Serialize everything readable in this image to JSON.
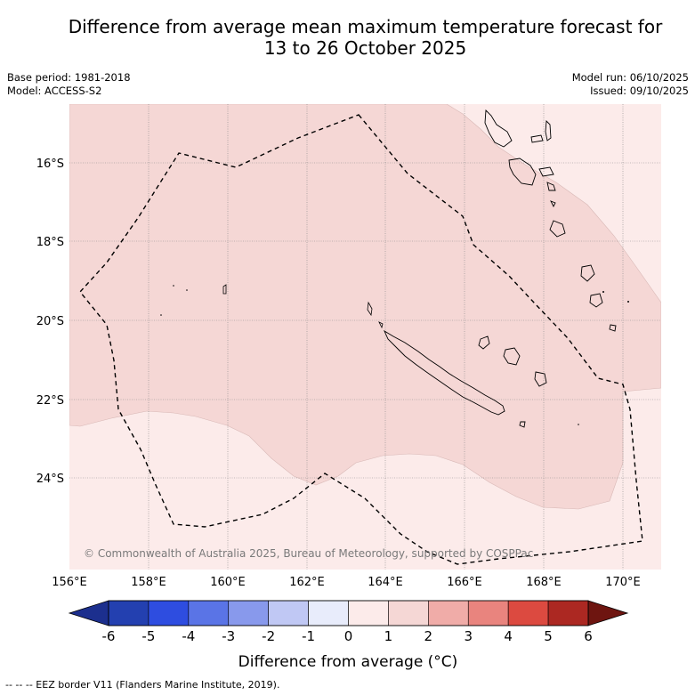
{
  "title": {
    "line1": "Difference from average mean maximum temperature forecast for",
    "line2": "13 to 26 October 2025"
  },
  "meta": {
    "base_period": "Base period: 1981-2018",
    "model": "Model: ACCESS-S2",
    "model_run": "Model run: 06/10/2025",
    "issued": "Issued: 09/10/2025"
  },
  "map": {
    "lat_labels": [
      "16°S",
      "18°S",
      "20°S",
      "22°S",
      "24°S"
    ],
    "lon_labels": [
      "156°E",
      "158°E",
      "160°E",
      "162°E",
      "164°E",
      "166°E",
      "168°E",
      "170°E"
    ],
    "copyright": "© Commonwealth of Australia 2025, Bureau of Meteorology, supported by COSPPac",
    "region_colors": {
      "range_0_1": "#fcebea",
      "range_1_2": "#f5d7d5",
      "background": "#ffffff"
    }
  },
  "colorbar": {
    "ticks": [
      "-6",
      "-5",
      "-4",
      "-3",
      "-2",
      "-1",
      "0",
      "1",
      "2",
      "3",
      "4",
      "5",
      "6"
    ],
    "colors": [
      "#1c2f8e",
      "#2340b0",
      "#2e4de0",
      "#5a74e6",
      "#8899ec",
      "#c0c8f4",
      "#e8ecfb",
      "#fcebea",
      "#f5d7d5",
      "#f0aca8",
      "#e9847e",
      "#dc4a40",
      "#ac2822",
      "#6e1510"
    ],
    "label": "Difference from average (°C)"
  },
  "footer": "-- -- -- EEZ border V11 (Flanders Marine Institute, 2019)."
}
